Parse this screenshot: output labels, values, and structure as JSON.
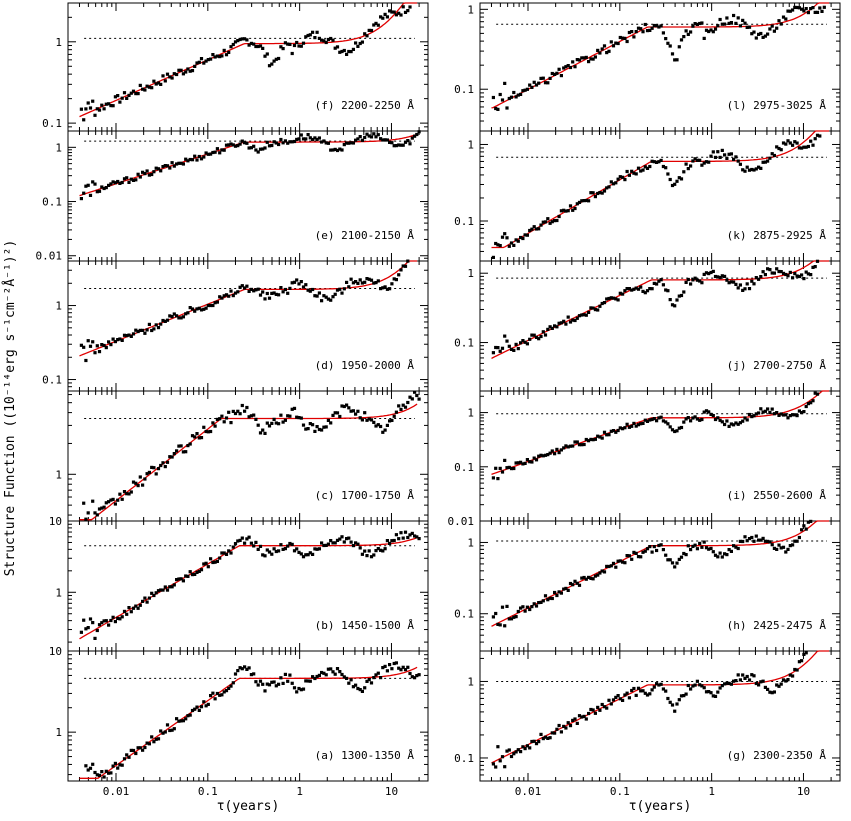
{
  "figure": {
    "ylabel": "Structure Function ((10⁻¹⁴erg s⁻¹cm⁻²Å⁻¹)²)",
    "xlabel": "τ(years)"
  },
  "chart_data": [
    {
      "id": "f",
      "label": "(f) 2200-2250 Å",
      "type": "scatter",
      "xlog": true,
      "ylog": true,
      "xlim": [
        0.003,
        25
      ],
      "ylim": [
        0.08,
        3.0
      ],
      "yticks": [
        {
          "v": 0.1,
          "t": "0.1"
        },
        {
          "v": 1,
          "t": "1"
        }
      ],
      "xticks": [],
      "dotted": 1.1,
      "plateau": 0.95,
      "break": 0.25,
      "rise": 0.5,
      "lowmin": 0.08,
      "dip": {
        "x": 0.5,
        "y": 0.55
      },
      "bump": {
        "x": 0.25,
        "y": 1.05
      },
      "tail": 2.5
    },
    {
      "id": "e",
      "label": "(e) 2100-2150 Å",
      "type": "scatter",
      "xlog": true,
      "ylog": true,
      "xlim": [
        0.003,
        25
      ],
      "ylim": [
        0.008,
        2.0
      ],
      "yticks": [
        {
          "v": 0.01,
          "t": "0.01"
        },
        {
          "v": 0.1,
          "t": "0.1"
        },
        {
          "v": 1,
          "t": "1"
        }
      ],
      "xticks": [],
      "dotted": 1.3,
      "plateau": 1.25,
      "break": 0.25,
      "rise": 0.55,
      "lowmin": 0.05,
      "dip": {
        "x": 0.35,
        "y": 0.9
      },
      "bump": {
        "x": 0.22,
        "y": 1.3
      },
      "tail": 1.8
    },
    {
      "id": "d",
      "label": "(d) 1950-2000 Å",
      "type": "scatter",
      "xlog": true,
      "ylog": true,
      "xlim": [
        0.003,
        25
      ],
      "ylim": [
        0.07,
        4.0
      ],
      "yticks": [
        {
          "v": 0.1,
          "t": "0.1"
        },
        {
          "v": 1,
          "t": "1"
        }
      ],
      "xticks": [],
      "dotted": 1.7,
      "plateau": 1.65,
      "break": 0.25,
      "rise": 0.5,
      "lowmin": 0.13,
      "dip": {
        "x": 0.45,
        "y": 1.3
      },
      "bump": {
        "x": 0.25,
        "y": 1.8
      },
      "tail": 3.0
    },
    {
      "id": "c",
      "label": "(c) 1700-1750 Å",
      "type": "scatter",
      "xlog": true,
      "ylog": true,
      "xlim": [
        0.003,
        25
      ],
      "ylim": [
        0.35,
        6.5
      ],
      "yticks": [
        {
          "v": 1,
          "t": "1"
        }
      ],
      "xticks": [],
      "dotted": 3.5,
      "plateau": 3.5,
      "break": 0.14,
      "rise": 0.7,
      "lowmin": 0.4,
      "dip": {
        "x": 0.4,
        "y": 2.7
      },
      "bump": {
        "x": 0.25,
        "y": 4.5
      },
      "tail": 5.0
    },
    {
      "id": "b",
      "label": "(b) 1450-1500 Å",
      "type": "scatter",
      "xlog": true,
      "ylog": true,
      "xlim": [
        0.003,
        25
      ],
      "ylim": [
        0.15,
        10.0
      ],
      "yticks": [
        {
          "v": 1,
          "t": "1"
        },
        {
          "v": 10,
          "t": "10"
        }
      ],
      "xticks": [],
      "dotted": 4.5,
      "plateau": 4.5,
      "break": 0.22,
      "rise": 0.75,
      "lowmin": 0.2,
      "dip": {
        "x": 0.45,
        "y": 3.5
      },
      "bump": {
        "x": 0.25,
        "y": 5.5
      },
      "tail": 6.0
    },
    {
      "id": "a",
      "label": "(a) 1300-1350 Å",
      "type": "scatter",
      "xlog": true,
      "ylog": true,
      "xlim": [
        0.003,
        25
      ],
      "ylim": [
        0.25,
        10.0
      ],
      "yticks": [
        {
          "v": 1,
          "t": "1"
        },
        {
          "v": 10,
          "t": "10"
        }
      ],
      "xticks": [
        {
          "v": 0.01,
          "t": "0.01"
        },
        {
          "v": 0.1,
          "t": "0.1"
        },
        {
          "v": 1,
          "t": "1"
        },
        {
          "v": 10,
          "t": "10"
        }
      ],
      "dotted": 4.6,
      "plateau": 4.6,
      "break": 0.22,
      "rise": 0.8,
      "lowmin": 0.3,
      "dip": {
        "x": 0.45,
        "y": 3.5
      },
      "bump": {
        "x": 0.25,
        "y": 5.8
      },
      "tail": 6.5
    },
    {
      "id": "l",
      "label": "(l) 2975-3025 Å",
      "type": "scatter",
      "xlog": true,
      "ylog": true,
      "xlim": [
        0.003,
        25
      ],
      "ylim": [
        0.03,
        1.2
      ],
      "yticks": [
        {
          "v": 0.1,
          "t": "0.1"
        },
        {
          "v": 1,
          "t": "1"
        }
      ],
      "xticks": [],
      "dotted": 0.65,
      "plateau": 0.6,
      "break": 0.2,
      "rise": 0.6,
      "lowmin": 0.065,
      "dip": {
        "x": 0.4,
        "y": 0.25
      },
      "bump": {
        "x": 0.2,
        "y": 0.6
      },
      "tail": 1.0
    },
    {
      "id": "k",
      "label": "(k) 2875-2925 Å",
      "type": "scatter",
      "xlog": true,
      "ylog": true,
      "xlim": [
        0.003,
        25
      ],
      "ylim": [
        0.03,
        1.5
      ],
      "yticks": [
        {
          "v": 0.1,
          "t": "0.1"
        },
        {
          "v": 1,
          "t": "1"
        }
      ],
      "xticks": [],
      "dotted": 0.68,
      "plateau": 0.6,
      "break": 0.22,
      "rise": 0.7,
      "lowmin": 0.05,
      "dip": {
        "x": 0.4,
        "y": 0.28
      },
      "bump": {
        "x": 0.2,
        "y": 0.55
      },
      "tail": 1.3
    },
    {
      "id": "j",
      "label": "(j) 2700-2750 Å",
      "type": "scatter",
      "xlog": true,
      "ylog": true,
      "xlim": [
        0.003,
        25
      ],
      "ylim": [
        0.02,
        1.5
      ],
      "yticks": [
        {
          "v": 0.1,
          "t": "0.1"
        },
        {
          "v": 1,
          "t": "1"
        }
      ],
      "xticks": [],
      "dotted": 0.85,
      "plateau": 0.8,
      "break": 0.22,
      "rise": 0.65,
      "lowmin": 0.05,
      "dip": {
        "x": 0.4,
        "y": 0.35
      },
      "bump": {
        "x": 0.2,
        "y": 0.6
      },
      "tail": 1.4
    },
    {
      "id": "i",
      "label": "(i) 2550-2600 Å",
      "type": "scatter",
      "xlog": true,
      "ylog": true,
      "xlim": [
        0.003,
        25
      ],
      "ylim": [
        0.01,
        2.5
      ],
      "yticks": [
        {
          "v": 0.01,
          "t": "0.01"
        },
        {
          "v": 0.1,
          "t": "0.1"
        },
        {
          "v": 1,
          "t": "1"
        }
      ],
      "xticks": [],
      "dotted": 0.95,
      "plateau": 0.8,
      "break": 0.22,
      "rise": 0.6,
      "lowmin": 0.05,
      "dip": {
        "x": 0.4,
        "y": 0.4
      },
      "bump": {
        "x": 0.2,
        "y": 0.7
      },
      "tail": 1.7
    },
    {
      "id": "h",
      "label": "(h) 2425-2475 Å",
      "type": "scatter",
      "xlog": true,
      "ylog": true,
      "xlim": [
        0.003,
        25
      ],
      "ylim": [
        0.03,
        2.0
      ],
      "yticks": [
        {
          "v": 0.1,
          "t": "0.1"
        },
        {
          "v": 1,
          "t": "1"
        }
      ],
      "xticks": [],
      "dotted": 1.05,
      "plateau": 0.9,
      "break": 0.22,
      "rise": 0.65,
      "lowmin": 0.07,
      "dip": {
        "x": 0.4,
        "y": 0.45
      },
      "bump": {
        "x": 0.2,
        "y": 0.8
      },
      "tail": 1.7
    },
    {
      "id": "g",
      "label": "(g) 2300-2350 Å",
      "type": "scatter",
      "xlog": true,
      "ylog": true,
      "xlim": [
        0.003,
        25
      ],
      "ylim": [
        0.05,
        2.5
      ],
      "yticks": [
        {
          "v": 0.1,
          "t": "0.1"
        },
        {
          "v": 1,
          "t": "1"
        }
      ],
      "xticks": [
        {
          "v": 0.01,
          "t": "0.01"
        },
        {
          "v": 0.1,
          "t": "0.1"
        },
        {
          "v": 1,
          "t": "1"
        },
        {
          "v": 10,
          "t": "10"
        }
      ],
      "dotted": 1.0,
      "plateau": 0.9,
      "break": 0.2,
      "rise": 0.6,
      "lowmin": 0.07,
      "dip": {
        "x": 0.4,
        "y": 0.45
      },
      "bump": {
        "x": 0.2,
        "y": 0.75
      },
      "tail": 2.0
    }
  ]
}
